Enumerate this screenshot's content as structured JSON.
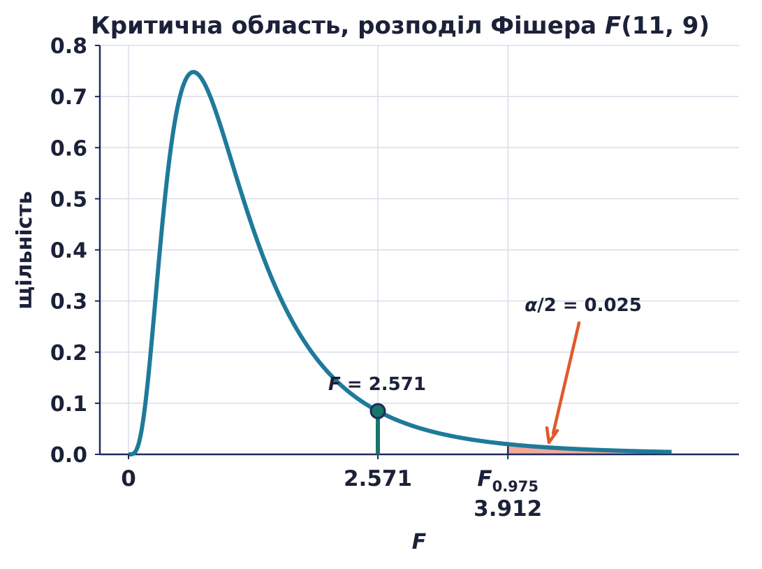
{
  "chart_data": {
    "type": "line",
    "title_prefix": "Критична область, розподіл Фішера ",
    "title_dist": "F",
    "title_params": "(11, 9)",
    "xlabel": "F",
    "ylabel": "щільність",
    "df1": 11,
    "df2": 9,
    "xlim": [
      -0.8,
      5.3
    ],
    "ylim": [
      0,
      0.8
    ],
    "x_curve_range": [
      0,
      5.6
    ],
    "yticks": [
      "0.0",
      "0.1",
      "0.2",
      "0.3",
      "0.4",
      "0.5",
      "0.6",
      "0.7",
      "0.8"
    ],
    "xticks": [
      {
        "value": 0,
        "label": "0"
      },
      {
        "value": 2.571,
        "label": "2.571"
      },
      {
        "value": 3.912,
        "label": "F",
        "sub": "0.975",
        "second_line": "3.912"
      }
    ],
    "observed": {
      "x": 2.571,
      "y": 0.085,
      "label_var": "F",
      "label_value": " = 2.571"
    },
    "critical": {
      "x": 3.912
    },
    "tail_annotation": {
      "label_var": "α",
      "label_rest": "/2 = 0.025"
    },
    "grid": true,
    "colors": {
      "curve": "#1f7a99",
      "tail_fill": "#f2a999",
      "observed_line": "#17756a",
      "observed_point": "#17756a",
      "arrow": "#e05a2b",
      "axis": "#1f2a5c",
      "text": "#1b2138"
    }
  }
}
